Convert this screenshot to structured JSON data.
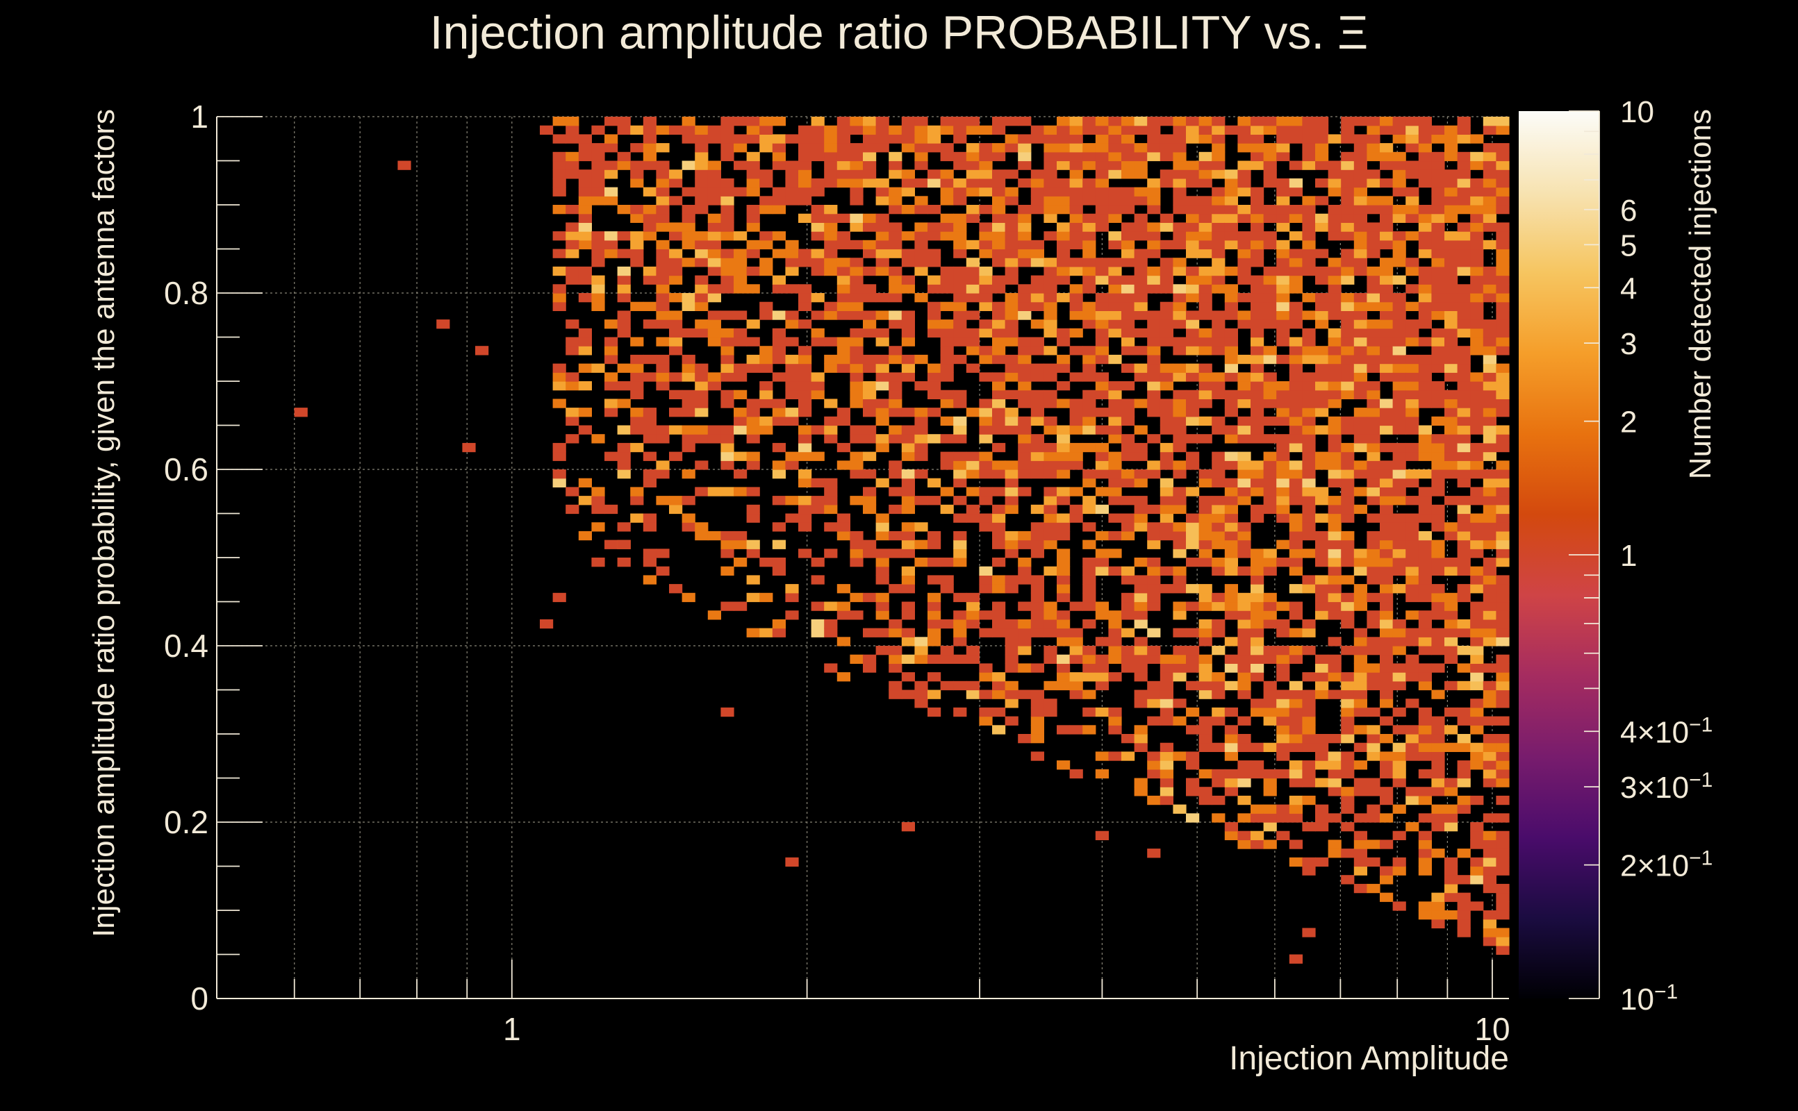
{
  "colors": {
    "background": "#000000",
    "text": "#f2ead8",
    "axis": "#f2ead8",
    "grid": "#8a8678",
    "colormap": [
      "#000004",
      "#1b0c41",
      "#4a0c6b",
      "#781c6d",
      "#a52c60",
      "#cf4446",
      "#d3490e",
      "#e8720f",
      "#f59e2a",
      "#f6c560",
      "#f7e3b2",
      "#fcfcf8"
    ]
  },
  "chart_data": {
    "type": "heatmap",
    "title": "Injection amplitude ratio PROBABILITY vs.  Ξ",
    "xlabel": "Injection Amplitude",
    "ylabel": "Injection amplitude ratio probability, given the antenna factors",
    "colorbar_label": "Number detected injections",
    "x_scale": "log",
    "xlim": [
      0.5,
      10.4
    ],
    "ylim": [
      0,
      1
    ],
    "z_scale": "log",
    "zlim": [
      0.1,
      10
    ],
    "grid": true,
    "x_tick_labels": [
      {
        "value": 1,
        "label": "1"
      },
      {
        "value": 10,
        "label": "10"
      }
    ],
    "y_tick_labels": [
      {
        "value": 0,
        "label": "0"
      },
      {
        "value": 0.2,
        "label": "0.2"
      },
      {
        "value": 0.4,
        "label": "0.4"
      },
      {
        "value": 0.6,
        "label": "0.6"
      },
      {
        "value": 0.8,
        "label": "0.8"
      },
      {
        "value": 1,
        "label": "1"
      }
    ],
    "z_tick_labels": [
      {
        "value": 10,
        "label": "10"
      },
      {
        "value": 6,
        "label": "6"
      },
      {
        "value": 5,
        "label": "5"
      },
      {
        "value": 4,
        "label": "4"
      },
      {
        "value": 3,
        "label": "3"
      },
      {
        "value": 2,
        "label": "2"
      },
      {
        "value": 1,
        "label": "1"
      },
      {
        "value": 0.4,
        "label": "4×10",
        "exp": "−1"
      },
      {
        "value": 0.3,
        "label": "3×10",
        "exp": "−1"
      },
      {
        "value": 0.2,
        "label": "2×10",
        "exp": "−1"
      },
      {
        "value": 0.1,
        "label": "10",
        "exp": "−1"
      }
    ],
    "binning": {
      "n_x": 100,
      "x_min": 0.5,
      "x_max": 10.4,
      "n_y": 100,
      "y_min": 0,
      "y_max": 1
    },
    "isolated_bins": [
      {
        "x": 0.61,
        "y": 0.66,
        "z": 1
      },
      {
        "x": 0.78,
        "y": 0.945,
        "z": 1
      },
      {
        "x": 0.86,
        "y": 0.765,
        "z": 1
      },
      {
        "x": 0.93,
        "y": 0.735,
        "z": 1
      },
      {
        "x": 0.9,
        "y": 0.62,
        "z": 1
      },
      {
        "x": 1.08,
        "y": 0.42,
        "z": 1
      },
      {
        "x": 1.12,
        "y": 0.455,
        "z": 1
      },
      {
        "x": 1.1,
        "y": 0.985,
        "z": 1
      },
      {
        "x": 1.16,
        "y": 0.85,
        "z": 1
      },
      {
        "x": 1.3,
        "y": 0.51,
        "z": 1
      },
      {
        "x": 1.65,
        "y": 0.32,
        "z": 1
      },
      {
        "x": 1.92,
        "y": 0.155,
        "z": 1
      },
      {
        "x": 2.57,
        "y": 0.198,
        "z": 1
      },
      {
        "x": 4.05,
        "y": 0.18,
        "z": 1
      },
      {
        "x": 4.55,
        "y": 0.16,
        "z": 1
      },
      {
        "x": 6.3,
        "y": 0.045,
        "z": 1
      },
      {
        "x": 6.5,
        "y": 0.075,
        "z": 1
      },
      {
        "x": 9.55,
        "y": 0.1,
        "z": 1
      }
    ],
    "density_model": {
      "description": "remaining populated bins follow an occupancy region bounded below by y = 0.5 at x = 1.1 falling to y = 0.05 at x = 10.4; counts 1 to 5 with most bins at 1",
      "z_values": [
        1,
        2,
        3,
        4,
        5
      ],
      "seed": 7
    }
  }
}
